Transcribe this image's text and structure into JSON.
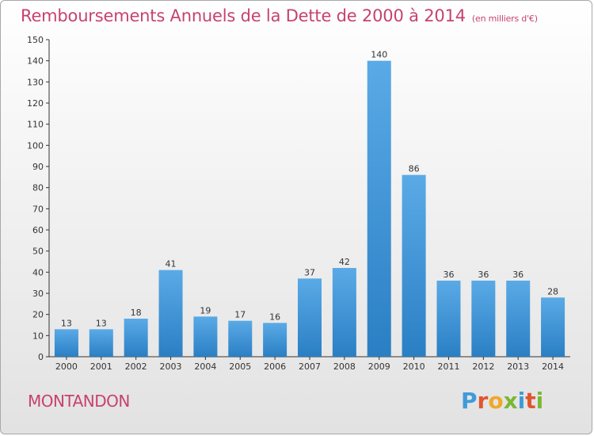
{
  "chart_data": {
    "type": "bar",
    "title": "Remboursements Annuels de la Dette de 2000 à 2014",
    "unit_note": "(en milliers d'€)",
    "categories": [
      "2000",
      "2001",
      "2002",
      "2003",
      "2004",
      "2005",
      "2006",
      "2007",
      "2008",
      "2009",
      "2010",
      "2011",
      "2012",
      "2013",
      "2014"
    ],
    "values": [
      13,
      13,
      18,
      41,
      19,
      17,
      16,
      37,
      42,
      140,
      86,
      36,
      36,
      36,
      28
    ],
    "ylim": [
      0,
      150
    ],
    "yticks": [
      0,
      10,
      20,
      30,
      40,
      50,
      60,
      70,
      80,
      90,
      100,
      110,
      120,
      130,
      140,
      150
    ],
    "grid": false,
    "bar_color_top": "#5aaae6",
    "bar_color_bottom": "#2a7fc4"
  },
  "footer": {
    "place_name": "MONTANDON",
    "logo_text": "Proxiti"
  },
  "colors": {
    "title": "#c7426e",
    "axis": "#333333"
  }
}
